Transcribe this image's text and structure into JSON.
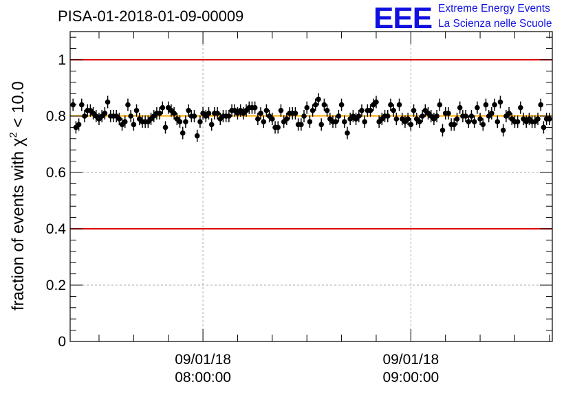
{
  "chart_data": {
    "type": "scatter",
    "title": "PISA-01-2018-01-09-00009",
    "ylabel_prefix": "fraction of events with ",
    "ylabel_symbol": "χ",
    "ylabel_superscript": "2",
    "ylabel_suffix": " < 10.0",
    "xlabel": "",
    "xlim": [
      0,
      167
    ],
    "ylim": [
      0,
      1.1
    ],
    "y_ticks": [
      "0",
      "0.2",
      "0.4",
      "0.6",
      "0.8",
      "1"
    ],
    "y_tick_values": [
      0,
      0.2,
      0.4,
      0.6,
      0.8,
      1.0
    ],
    "x_ticks": [
      {
        "value": 46,
        "date": "09/01/18",
        "time": "08:00:00"
      },
      {
        "value": 118,
        "date": "09/01/18",
        "time": "09:00:00"
      }
    ],
    "grid": true,
    "reference_lines": [
      {
        "value": 1.0,
        "color": "#dd0000"
      },
      {
        "value": 0.4,
        "color": "#dd0000"
      }
    ],
    "fit_line": {
      "value": 0.801,
      "color": "#ffaa00"
    },
    "y_error": 0.022,
    "point_color": "#000000",
    "values": [
      0.84,
      0.76,
      0.77,
      0.84,
      0.8,
      0.82,
      0.82,
      0.81,
      0.8,
      0.79,
      0.8,
      0.81,
      0.85,
      0.8,
      0.8,
      0.8,
      0.79,
      0.77,
      0.78,
      0.84,
      0.8,
      0.77,
      0.82,
      0.79,
      0.78,
      0.78,
      0.78,
      0.79,
      0.8,
      0.81,
      0.81,
      0.83,
      0.76,
      0.83,
      0.82,
      0.81,
      0.79,
      0.78,
      0.74,
      0.78,
      0.82,
      0.8,
      0.8,
      0.73,
      0.78,
      0.81,
      0.8,
      0.81,
      0.77,
      0.81,
      0.81,
      0.79,
      0.8,
      0.8,
      0.8,
      0.82,
      0.82,
      0.81,
      0.82,
      0.81,
      0.82,
      0.83,
      0.83,
      0.83,
      0.79,
      0.81,
      0.78,
      0.82,
      0.8,
      0.79,
      0.76,
      0.76,
      0.82,
      0.78,
      0.79,
      0.81,
      0.81,
      0.81,
      0.77,
      0.77,
      0.8,
      0.83,
      0.78,
      0.82,
      0.84,
      0.86,
      0.77,
      0.84,
      0.82,
      0.79,
      0.78,
      0.78,
      0.8,
      0.84,
      0.78,
      0.74,
      0.79,
      0.8,
      0.79,
      0.8,
      0.82,
      0.78,
      0.82,
      0.82,
      0.84,
      0.85,
      0.78,
      0.79,
      0.8,
      0.8,
      0.84,
      0.82,
      0.79,
      0.84,
      0.79,
      0.78,
      0.79,
      0.77,
      0.82,
      0.79,
      0.78,
      0.8,
      0.82,
      0.81,
      0.8,
      0.79,
      0.8,
      0.84,
      0.75,
      0.81,
      0.81,
      0.77,
      0.77,
      0.79,
      0.83,
      0.8,
      0.8,
      0.78,
      0.8,
      0.78,
      0.83,
      0.79,
      0.77,
      0.84,
      0.8,
      0.81,
      0.84,
      0.78,
      0.85,
      0.75,
      0.8,
      0.81,
      0.79,
      0.78,
      0.78,
      0.83,
      0.79,
      0.78,
      0.79,
      0.78,
      0.78,
      0.79,
      0.84,
      0.76,
      0.79,
      0.79
    ]
  },
  "logo": {
    "mark": "EEE",
    "line1": "Extreme Energy Events",
    "line2": "La Scienza nelle Scuole",
    "color": "#1010e0"
  }
}
